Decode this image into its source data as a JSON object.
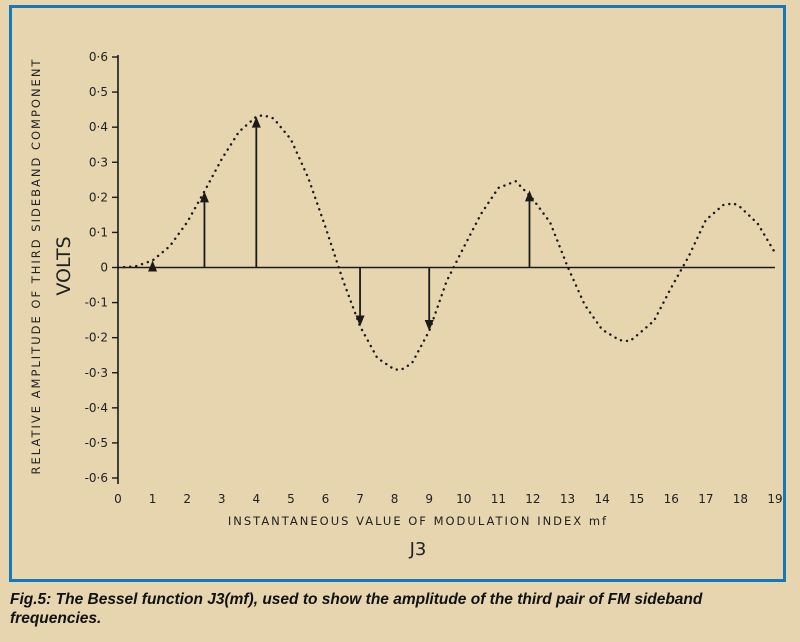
{
  "chart_data": {
    "type": "line",
    "title": "",
    "xlabel": "INSTANTANEOUS VALUE OF MODULATION INDEX mf",
    "ylabel": "RELATIVE AMPLITUDE OF THIRD SIDEBAND COMPONENT",
    "y_unit_label": "VOLTS",
    "function_label": "J3",
    "xlim": [
      0,
      19
    ],
    "ylim": [
      -0.6,
      0.6
    ],
    "x_ticks": [
      "0",
      "1",
      "2",
      "3",
      "4",
      "5",
      "6",
      "7",
      "8",
      "9",
      "10",
      "11",
      "12",
      "13",
      "14",
      "15",
      "16",
      "17",
      "18",
      "19"
    ],
    "y_ticks": [
      "0·6",
      "0·5",
      "0·4",
      "0·3",
      "0·2",
      "0·1",
      "0",
      "-0·1",
      "-0·2",
      "-0·3",
      "-0·4",
      "-0·5",
      "-0·6"
    ],
    "y_tick_values": [
      0.6,
      0.5,
      0.4,
      0.3,
      0.2,
      0.1,
      0,
      -0.1,
      -0.2,
      -0.3,
      -0.4,
      -0.5,
      -0.6
    ],
    "grid": false,
    "curve_style": "dotted",
    "series": [
      {
        "x": [
          0,
          0.5,
          1,
          1.5,
          2,
          2.5,
          3,
          3.5,
          4,
          4.2,
          4.5,
          5,
          5.5,
          6,
          6.5,
          7,
          7.5,
          8,
          8.2,
          8.5,
          9,
          9.5,
          10,
          10.5,
          11,
          11.5,
          12,
          12.5,
          13,
          13.5,
          14,
          14.5,
          14.8,
          15,
          15.5,
          16,
          16.5,
          17,
          17.5,
          17.8,
          18,
          18.5,
          19
        ],
        "y": [
          0,
          0.003,
          0.02,
          0.061,
          0.129,
          0.217,
          0.309,
          0.387,
          0.43,
          0.434,
          0.425,
          0.365,
          0.256,
          0.115,
          -0.035,
          -0.168,
          -0.258,
          -0.291,
          -0.291,
          -0.273,
          -0.181,
          -0.04,
          0.058,
          0.153,
          0.227,
          0.246,
          0.195,
          0.128,
          0.003,
          -0.107,
          -0.177,
          -0.207,
          -0.21,
          -0.194,
          -0.152,
          -0.057,
          0.031,
          0.135,
          0.178,
          0.183,
          0.172,
          0.125,
          0.042
        ]
      }
    ],
    "arrows": [
      {
        "x": 1,
        "y": 0.02
      },
      {
        "x": 2.5,
        "y": 0.217
      },
      {
        "x": 4,
        "y": 0.43
      },
      {
        "x": 7,
        "y": -0.168
      },
      {
        "x": 9,
        "y": -0.181
      },
      {
        "x": 11.9,
        "y": 0.22
      }
    ]
  },
  "caption": "Fig.5: The Bessel function J3(mf), used to show the amplitude of the third pair of FM sideband frequencies.",
  "colors": {
    "frame": "#1877b8",
    "ink": "#1a1a1a",
    "paper": "#e6d5ae"
  }
}
